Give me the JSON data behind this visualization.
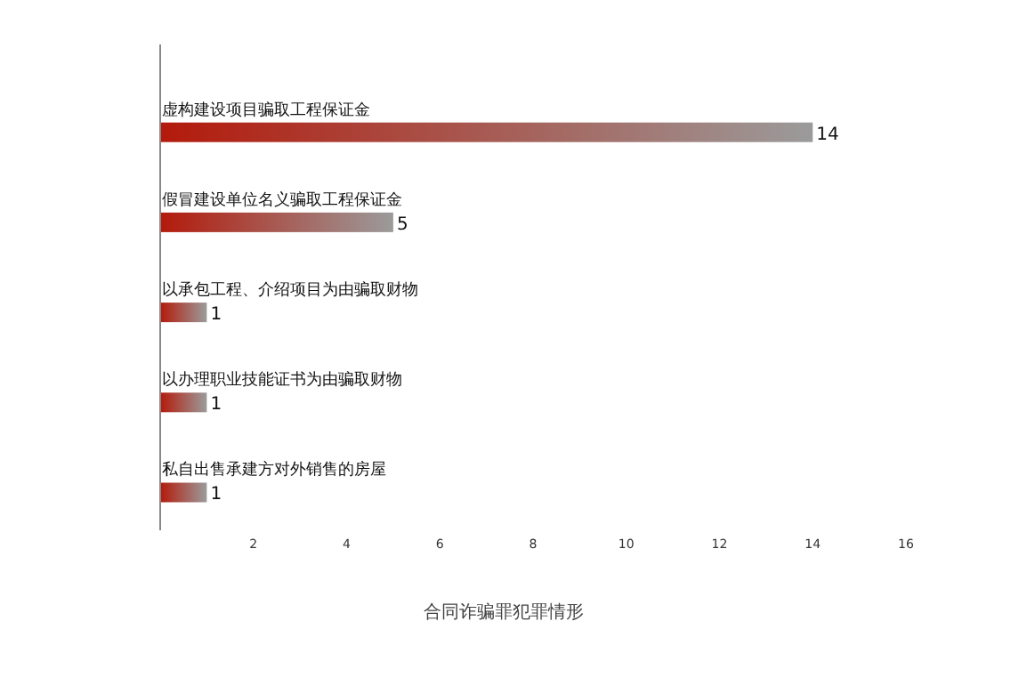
{
  "chart_data": {
    "type": "bar",
    "orientation": "horizontal",
    "xlabel": "合同诈骗罪犯罪情形",
    "categories": [
      "虚构建设项目骗取工程保证金",
      "假冒建设单位名义骗取工程保证金",
      "以承包工程、介绍项目为由骗取财物",
      "以办理职业技能证书为由骗取财物",
      "私自出售承建方对外销售的房屋"
    ],
    "values": [
      14,
      5,
      1,
      1,
      1
    ],
    "color": "#b31a0b",
    "data_labels": true,
    "xlim": [
      0,
      16
    ],
    "xticks": [
      2,
      4,
      6,
      8,
      10,
      12,
      14,
      16
    ],
    "grid": false
  }
}
